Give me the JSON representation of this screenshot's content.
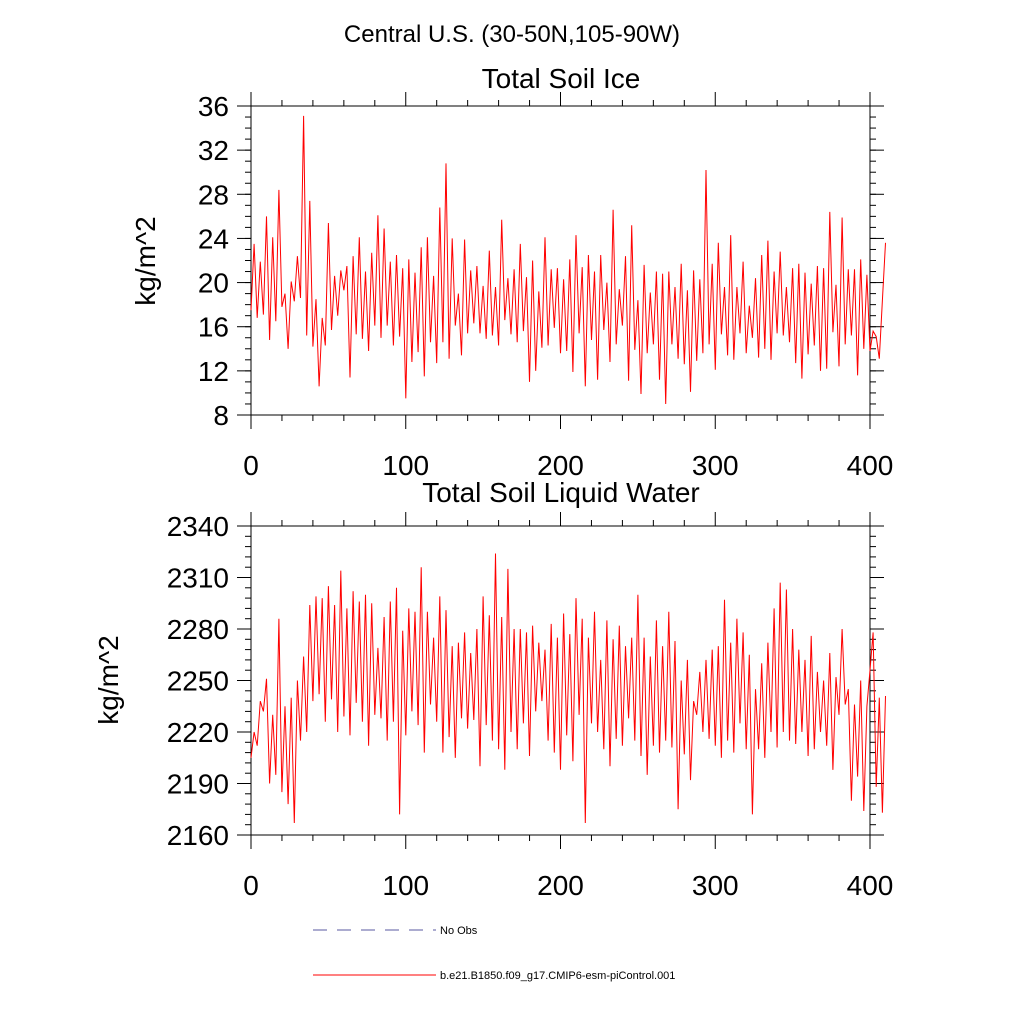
{
  "suptitle": "Central U.S. (30-50N,105-90W)",
  "legend": {
    "obs_label": "No Obs",
    "obs_color": "#5a5aa0",
    "model_label": "b.e21.B1850.f09_g17.CMIP6-esm-piControl.001",
    "model_color": "#ff0000"
  },
  "chart_data": [
    {
      "type": "line",
      "title": "Total Soil Ice",
      "xlabel": "",
      "ylabel": "kg/m^2",
      "xlim": [
        0,
        400
      ],
      "ylim": [
        8,
        36
      ],
      "x_ticks": [
        0,
        100,
        200,
        300,
        400
      ],
      "y_ticks": [
        8,
        12,
        16,
        20,
        24,
        28,
        32,
        36
      ],
      "x_tick_labels": [
        "0",
        "100",
        "200",
        "300",
        "400"
      ],
      "y_tick_labels": [
        "8",
        "12",
        "16",
        "20",
        "24",
        "28",
        "32",
        "36"
      ],
      "series": [
        {
          "name": "b.e21.B1850.f09_g17.CMIP6-esm-piControl.001",
          "color": "#ff0000",
          "x_start": 0,
          "x_step": 2,
          "values": [
            17.5,
            23.5,
            16.8,
            21.9,
            17.1,
            26.0,
            14.8,
            24.1,
            16.5,
            28.4,
            17.8,
            19.0,
            14.0,
            20.1,
            18.3,
            22.4,
            18.6,
            35.1,
            15.2,
            27.4,
            14.2,
            18.5,
            10.6,
            16.8,
            14.3,
            25.4,
            15.7,
            20.6,
            17.0,
            21.1,
            19.3,
            21.5,
            11.4,
            22.4,
            15.3,
            24.1,
            14.9,
            21.0,
            13.8,
            22.7,
            16.1,
            26.1,
            15.0,
            24.9,
            16.1,
            21.9,
            14.3,
            22.5,
            15.1,
            21.3,
            9.5,
            22.1,
            12.8,
            20.9,
            13.7,
            23.2,
            11.5,
            24.1,
            14.6,
            20.6,
            12.7,
            26.8,
            14.6,
            30.8,
            13.1,
            24.0,
            16.1,
            19.0,
            13.4,
            23.9,
            15.4,
            21.1,
            16.3,
            21.5,
            15.4,
            19.7,
            14.9,
            22.9,
            15.2,
            19.6,
            14.3,
            25.7,
            16.6,
            20.4,
            15.3,
            21.2,
            14.6,
            23.5,
            15.6,
            20.5,
            11.0,
            22.0,
            12.0,
            19.2,
            14.1,
            24.1,
            14.3,
            21.2,
            15.9,
            21.3,
            13.6,
            20.3,
            13.8,
            22.1,
            11.9,
            24.3,
            15.4,
            21.4,
            10.6,
            22.5,
            14.8,
            21.0,
            11.2,
            22.5,
            15.7,
            20.0,
            12.8,
            26.6,
            14.4,
            19.4,
            16.1,
            22.4,
            11.1,
            25.2,
            13.9,
            18.4,
            9.9,
            21.6,
            13.6,
            19.1,
            14.4,
            21.0,
            11.2,
            20.8,
            9.0,
            21.0,
            14.4,
            19.6,
            13.1,
            21.7,
            12.6,
            19.3,
            10.1,
            21.1,
            12.9,
            20.3,
            13.6,
            30.2,
            14.4,
            21.7,
            12.1,
            23.6,
            15.3,
            19.6,
            13.4,
            24.3,
            13.0,
            19.6,
            15.4,
            21.9,
            13.6,
            17.9,
            15.0,
            20.4,
            13.2,
            22.5,
            14.0,
            23.8,
            13.0,
            21.0,
            15.4,
            22.8,
            15.2,
            19.6,
            14.6,
            21.3,
            12.7,
            21.7,
            11.3,
            20.9,
            13.5,
            19.9,
            14.3,
            21.5,
            12.0,
            21.3,
            12.2,
            26.4,
            15.5,
            19.8,
            12.4,
            25.9,
            14.4,
            21.2,
            15.2,
            21.2,
            11.6,
            22.1,
            14.0,
            20.7,
            13.8,
            15.6,
            15.1,
            13.1,
            18.4,
            23.6
          ]
        }
      ]
    },
    {
      "type": "line",
      "title": "Total Soil Liquid Water",
      "xlabel": "",
      "ylabel": "kg/m^2",
      "xlim": [
        0,
        400
      ],
      "ylim": [
        2160,
        2340
      ],
      "x_ticks": [
        0,
        100,
        200,
        300,
        400
      ],
      "y_ticks": [
        2160,
        2190,
        2220,
        2250,
        2280,
        2310,
        2340
      ],
      "x_tick_labels": [
        "0",
        "100",
        "200",
        "300",
        "400"
      ],
      "y_tick_labels": [
        "2160",
        "2190",
        "2220",
        "2250",
        "2280",
        "2310",
        "2340"
      ],
      "series": [
        {
          "name": "b.e21.B1850.f09_g17.CMIP6-esm-piControl.001",
          "color": "#ff0000",
          "x_start": 0,
          "x_step": 2,
          "values": [
            2205,
            2220,
            2212,
            2238,
            2232,
            2251,
            2190,
            2230,
            2195,
            2286,
            2185,
            2235,
            2178,
            2240,
            2167,
            2250,
            2215,
            2264,
            2220,
            2294,
            2238,
            2299,
            2242,
            2298,
            2226,
            2305,
            2239,
            2294,
            2220,
            2314,
            2229,
            2292,
            2218,
            2302,
            2237,
            2296,
            2226,
            2300,
            2212,
            2295,
            2230,
            2269,
            2228,
            2287,
            2215,
            2296,
            2226,
            2304,
            2172,
            2279,
            2218,
            2292,
            2232,
            2290,
            2224,
            2316,
            2208,
            2290,
            2236,
            2275,
            2226,
            2299,
            2208,
            2291,
            2217,
            2270,
            2205,
            2272,
            2228,
            2278,
            2222,
            2266,
            2227,
            2280,
            2200,
            2299,
            2224,
            2288,
            2215,
            2324,
            2210,
            2287,
            2198,
            2315,
            2220,
            2280,
            2210,
            2280,
            2225,
            2278,
            2206,
            2282,
            2232,
            2272,
            2238,
            2268,
            2215,
            2283,
            2208,
            2275,
            2198,
            2289,
            2218,
            2277,
            2203,
            2298,
            2230,
            2286,
            2167,
            2275,
            2225,
            2290,
            2220,
            2262,
            2210,
            2285,
            2200,
            2274,
            2216,
            2282,
            2212,
            2270,
            2228,
            2275,
            2215,
            2300,
            2206,
            2275,
            2195,
            2264,
            2212,
            2285,
            2208,
            2270,
            2215,
            2290,
            2211,
            2273,
            2175,
            2250,
            2207,
            2262,
            2192,
            2238,
            2230,
            2255,
            2220,
            2262,
            2216,
            2268,
            2212,
            2270,
            2205,
            2297,
            2215,
            2272,
            2208,
            2286,
            2225,
            2278,
            2210,
            2265,
            2172,
            2245,
            2210,
            2260,
            2205,
            2272,
            2220,
            2292,
            2211,
            2307,
            2220,
            2303,
            2215,
            2280,
            2213,
            2268,
            2220,
            2262,
            2206,
            2276,
            2210,
            2255,
            2220,
            2250,
            2212,
            2266,
            2198,
            2252,
            2230,
            2280,
            2236,
            2245,
            2180,
            2236,
            2194,
            2250,
            2174,
            2235,
            2256,
            2278,
            2188,
            2240,
            2173,
            2241
          ]
        }
      ]
    }
  ]
}
